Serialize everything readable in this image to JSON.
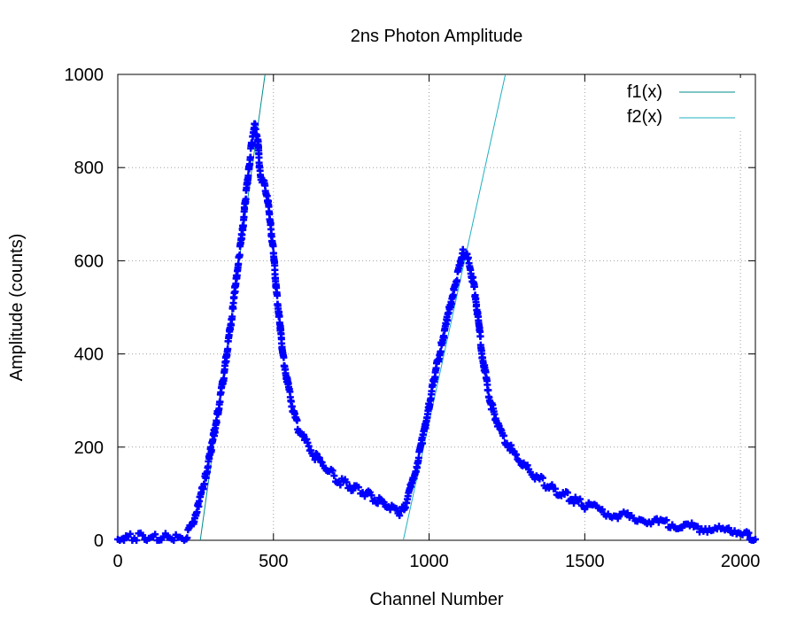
{
  "chart_data": {
    "type": "scatter",
    "title": "2ns Photon Amplitude",
    "xlabel": "Channel Number",
    "ylabel": "Amplitude (counts)",
    "xlim": [
      0,
      2048
    ],
    "ylim": [
      0,
      1000
    ],
    "x_ticks": [
      0,
      500,
      1000,
      1500,
      2000
    ],
    "y_ticks": [
      0,
      200,
      400,
      600,
      800,
      1000
    ],
    "grid": true,
    "legend_position": "top-right",
    "series": [
      {
        "kind": "points",
        "marker": "plus",
        "color": "#0000ff",
        "points": [
          [
            0,
            2
          ],
          [
            20,
            4
          ],
          [
            40,
            6
          ],
          [
            60,
            5
          ],
          [
            80,
            7
          ],
          [
            100,
            5
          ],
          [
            120,
            6
          ],
          [
            140,
            4
          ],
          [
            160,
            6
          ],
          [
            180,
            5
          ],
          [
            200,
            6
          ],
          [
            220,
            10
          ],
          [
            240,
            35
          ],
          [
            260,
            80
          ],
          [
            280,
            130
          ],
          [
            300,
            195
          ],
          [
            320,
            270
          ],
          [
            340,
            350
          ],
          [
            360,
            450
          ],
          [
            370,
            500
          ],
          [
            380,
            560
          ],
          [
            390,
            610
          ],
          [
            400,
            660
          ],
          [
            410,
            730
          ],
          [
            420,
            790
          ],
          [
            430,
            850
          ],
          [
            440,
            890
          ],
          [
            450,
            860
          ],
          [
            455,
            800
          ],
          [
            460,
            780
          ],
          [
            470,
            770
          ],
          [
            480,
            740
          ],
          [
            490,
            680
          ],
          [
            500,
            620
          ],
          [
            510,
            530
          ],
          [
            520,
            470
          ],
          [
            530,
            400
          ],
          [
            540,
            360
          ],
          [
            550,
            320
          ],
          [
            560,
            290
          ],
          [
            570,
            260
          ],
          [
            580,
            240
          ],
          [
            600,
            215
          ],
          [
            620,
            195
          ],
          [
            640,
            175
          ],
          [
            660,
            160
          ],
          [
            680,
            148
          ],
          [
            700,
            135
          ],
          [
            720,
            125
          ],
          [
            740,
            118
          ],
          [
            760,
            110
          ],
          [
            780,
            105
          ],
          [
            800,
            100
          ],
          [
            820,
            92
          ],
          [
            840,
            85
          ],
          [
            860,
            78
          ],
          [
            880,
            70
          ],
          [
            900,
            62
          ],
          [
            910,
            60
          ],
          [
            920,
            70
          ],
          [
            940,
            110
          ],
          [
            960,
            160
          ],
          [
            980,
            220
          ],
          [
            1000,
            290
          ],
          [
            1020,
            360
          ],
          [
            1040,
            420
          ],
          [
            1060,
            480
          ],
          [
            1080,
            540
          ],
          [
            1100,
            590
          ],
          [
            1110,
            620
          ],
          [
            1120,
            610
          ],
          [
            1130,
            590
          ],
          [
            1140,
            560
          ],
          [
            1150,
            520
          ],
          [
            1160,
            460
          ],
          [
            1170,
            400
          ],
          [
            1180,
            360
          ],
          [
            1190,
            320
          ],
          [
            1200,
            290
          ],
          [
            1210,
            270
          ],
          [
            1220,
            250
          ],
          [
            1240,
            220
          ],
          [
            1260,
            200
          ],
          [
            1280,
            180
          ],
          [
            1300,
            165
          ],
          [
            1320,
            150
          ],
          [
            1340,
            138
          ],
          [
            1360,
            128
          ],
          [
            1380,
            118
          ],
          [
            1400,
            110
          ],
          [
            1420,
            102
          ],
          [
            1440,
            95
          ],
          [
            1460,
            88
          ],
          [
            1480,
            82
          ],
          [
            1500,
            76
          ],
          [
            1550,
            65
          ],
          [
            1600,
            55
          ],
          [
            1650,
            48
          ],
          [
            1700,
            42
          ],
          [
            1750,
            36
          ],
          [
            1800,
            32
          ],
          [
            1850,
            28
          ],
          [
            1900,
            25
          ],
          [
            1950,
            22
          ],
          [
            2000,
            20
          ],
          [
            2020,
            15
          ],
          [
            2030,
            3
          ],
          [
            2048,
            2
          ]
        ]
      },
      {
        "name": "f1(x)",
        "kind": "line",
        "color": "#008b8b",
        "points": [
          [
            265,
            0
          ],
          [
            473,
            1000
          ]
        ]
      },
      {
        "name": "f2(x)",
        "kind": "line",
        "color": "#1fb0c0",
        "points": [
          [
            917,
            0
          ],
          [
            1245,
            1000
          ]
        ]
      }
    ]
  }
}
